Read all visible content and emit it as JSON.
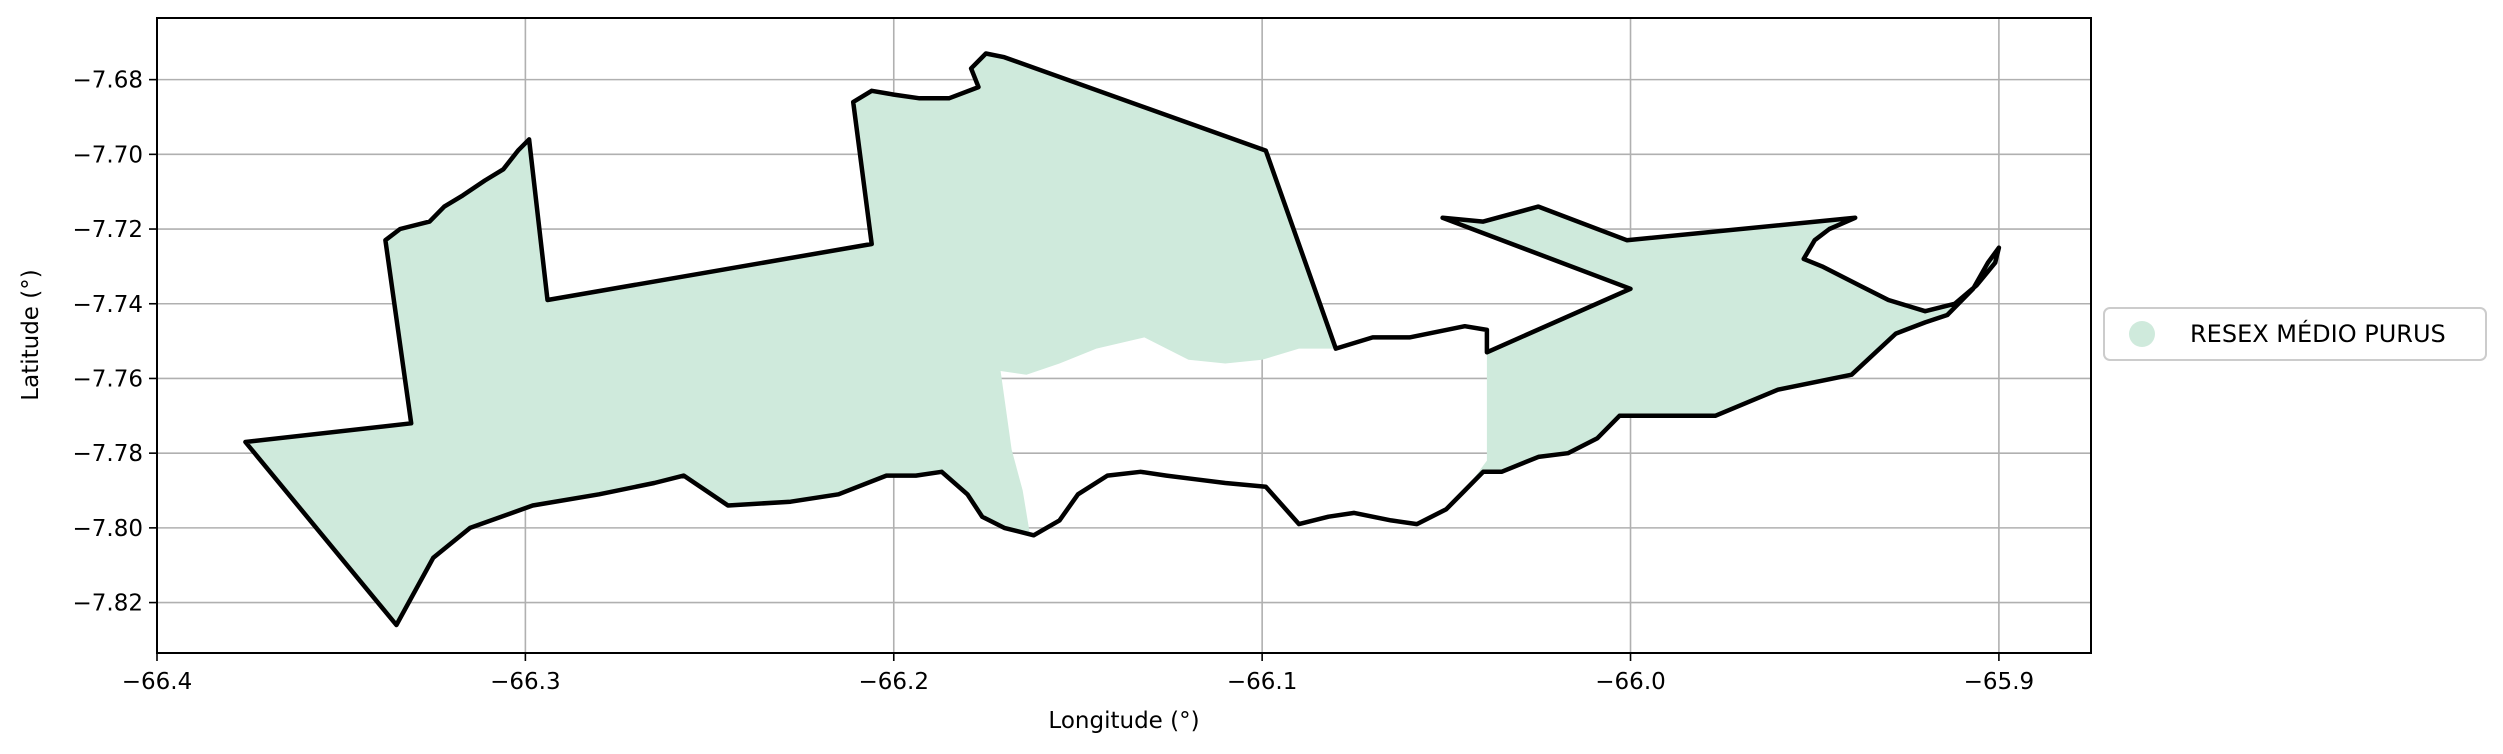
{
  "chart_data": {
    "type": "map",
    "xlabel": "Longitude (°)",
    "ylabel": "Latitude (°)",
    "xlim": [
      -66.4,
      -65.875
    ],
    "ylim": [
      -7.8335,
      -7.6635
    ],
    "x_ticks": [
      -66.4,
      -66.3,
      -66.2,
      -66.1,
      -66.0,
      -65.9
    ],
    "x_tick_labels": [
      "−66.4",
      "−66.3",
      "−66.2",
      "−66.1",
      "−66.0",
      "−65.9"
    ],
    "y_ticks": [
      -7.68,
      -7.7,
      -7.72,
      -7.74,
      -7.76,
      -7.78,
      -7.8,
      -7.82
    ],
    "y_tick_labels": [
      "−7.68",
      "−7.70",
      "−7.72",
      "−7.74",
      "−7.76",
      "−7.78",
      "−7.80",
      "−7.82"
    ],
    "grid": true,
    "legend_position": "right",
    "fill_color": "#cfeadc",
    "outline_color": "#000000",
    "legend": [
      {
        "label": "RESEX MÉDIO PURUS",
        "color": "#cfeadc"
      }
    ],
    "region": {
      "name": "RESEX MÉDIO PURUS",
      "outline": [
        [
          -66.376,
          -7.777
        ],
        [
          -66.331,
          -7.772
        ],
        [
          -66.338,
          -7.723
        ],
        [
          -66.334,
          -7.72
        ],
        [
          -66.326,
          -7.718
        ],
        [
          -66.322,
          -7.714
        ],
        [
          -66.317,
          -7.711
        ],
        [
          -66.311,
          -7.707
        ],
        [
          -66.306,
          -7.704
        ],
        [
          -66.302,
          -7.699
        ],
        [
          -66.299,
          -7.696
        ],
        [
          -66.294,
          -7.739
        ],
        [
          -66.206,
          -7.724
        ],
        [
          -66.211,
          -7.686
        ],
        [
          -66.206,
          -7.683
        ],
        [
          -66.2,
          -7.684
        ],
        [
          -66.193,
          -7.685
        ],
        [
          -66.185,
          -7.685
        ],
        [
          -66.177,
          -7.682
        ],
        [
          -66.179,
          -7.677
        ],
        [
          -66.175,
          -7.673
        ],
        [
          -66.17,
          -7.674
        ],
        [
          -66.099,
          -7.699
        ],
        [
          -66.08,
          -7.752
        ],
        [
          -66.07,
          -7.749
        ],
        [
          -66.06,
          -7.749
        ],
        [
          -66.045,
          -7.746
        ],
        [
          -66.039,
          -7.747
        ],
        [
          -66.039,
          -7.753
        ],
        [
          -66.0,
          -7.736
        ],
        [
          -66.051,
          -7.717
        ],
        [
          -66.04,
          -7.718
        ],
        [
          -66.025,
          -7.714
        ],
        [
          -66.001,
          -7.723
        ],
        [
          -65.939,
          -7.717
        ],
        [
          -65.946,
          -7.72
        ],
        [
          -65.95,
          -7.723
        ],
        [
          -65.953,
          -7.728
        ],
        [
          -65.948,
          -7.73
        ],
        [
          -65.938,
          -7.735
        ],
        [
          -65.93,
          -7.739
        ],
        [
          -65.92,
          -7.742
        ],
        [
          -65.912,
          -7.74
        ],
        [
          -65.906,
          -7.735
        ],
        [
          -65.901,
          -7.729
        ],
        [
          -65.9,
          -7.725
        ],
        [
          -65.903,
          -7.729
        ],
        [
          -65.907,
          -7.736
        ],
        [
          -65.914,
          -7.743
        ],
        [
          -65.92,
          -7.745
        ],
        [
          -65.928,
          -7.748
        ],
        [
          -65.94,
          -7.759
        ],
        [
          -65.96,
          -7.763
        ],
        [
          -65.977,
          -7.77
        ],
        [
          -65.995,
          -7.77
        ],
        [
          -66.003,
          -7.77
        ],
        [
          -66.009,
          -7.776
        ],
        [
          -66.017,
          -7.78
        ],
        [
          -66.025,
          -7.781
        ],
        [
          -66.035,
          -7.785
        ],
        [
          -66.04,
          -7.785
        ],
        [
          -66.045,
          -7.79
        ],
        [
          -66.05,
          -7.795
        ],
        [
          -66.058,
          -7.799
        ],
        [
          -66.065,
          -7.798
        ],
        [
          -66.075,
          -7.796
        ],
        [
          -66.082,
          -7.797
        ],
        [
          -66.09,
          -7.799
        ],
        [
          -66.099,
          -7.789
        ],
        [
          -66.11,
          -7.788
        ],
        [
          -66.118,
          -7.787
        ],
        [
          -66.126,
          -7.786
        ],
        [
          -66.133,
          -7.785
        ],
        [
          -66.142,
          -7.786
        ],
        [
          -66.15,
          -7.791
        ],
        [
          -66.155,
          -7.798
        ],
        [
          -66.162,
          -7.802
        ],
        [
          -66.17,
          -7.8
        ],
        [
          -66.176,
          -7.797
        ],
        [
          -66.18,
          -7.791
        ],
        [
          -66.187,
          -7.785
        ],
        [
          -66.194,
          -7.786
        ],
        [
          -66.202,
          -7.786
        ],
        [
          -66.215,
          -7.791
        ],
        [
          -66.228,
          -7.793
        ],
        [
          -66.245,
          -7.794
        ],
        [
          -66.257,
          -7.786
        ],
        [
          -66.265,
          -7.788
        ],
        [
          -66.28,
          -7.791
        ],
        [
          -66.298,
          -7.794
        ],
        [
          -66.315,
          -7.8
        ],
        [
          -66.325,
          -7.808
        ],
        [
          -66.335,
          -7.826
        ],
        [
          -66.376,
          -7.777
        ]
      ],
      "unfilled_areas": [
        [
          [
            -66.171,
            -7.758
          ],
          [
            -66.164,
            -7.759
          ],
          [
            -66.155,
            -7.756
          ],
          [
            -66.145,
            -7.752
          ],
          [
            -66.132,
            -7.749
          ],
          [
            -66.12,
            -7.755
          ],
          [
            -66.11,
            -7.756
          ],
          [
            -66.1,
            -7.755
          ],
          [
            -66.09,
            -7.752
          ],
          [
            -66.08,
            -7.752
          ],
          [
            -66.07,
            -7.749
          ],
          [
            -66.06,
            -7.749
          ],
          [
            -66.045,
            -7.746
          ],
          [
            -66.039,
            -7.747
          ],
          [
            -66.039,
            -7.782
          ],
          [
            -66.045,
            -7.79
          ],
          [
            -66.05,
            -7.795
          ],
          [
            -66.058,
            -7.799
          ],
          [
            -66.065,
            -7.798
          ],
          [
            -66.075,
            -7.796
          ],
          [
            -66.082,
            -7.797
          ],
          [
            -66.09,
            -7.799
          ],
          [
            -66.099,
            -7.789
          ],
          [
            -66.11,
            -7.788
          ],
          [
            -66.118,
            -7.787
          ],
          [
            -66.126,
            -7.786
          ],
          [
            -66.133,
            -7.785
          ],
          [
            -66.142,
            -7.786
          ],
          [
            -66.15,
            -7.791
          ],
          [
            -66.155,
            -7.798
          ],
          [
            -66.163,
            -7.802
          ],
          [
            -66.165,
            -7.79
          ],
          [
            -66.168,
            -7.779
          ],
          [
            -66.171,
            -7.758
          ]
        ]
      ]
    }
  }
}
